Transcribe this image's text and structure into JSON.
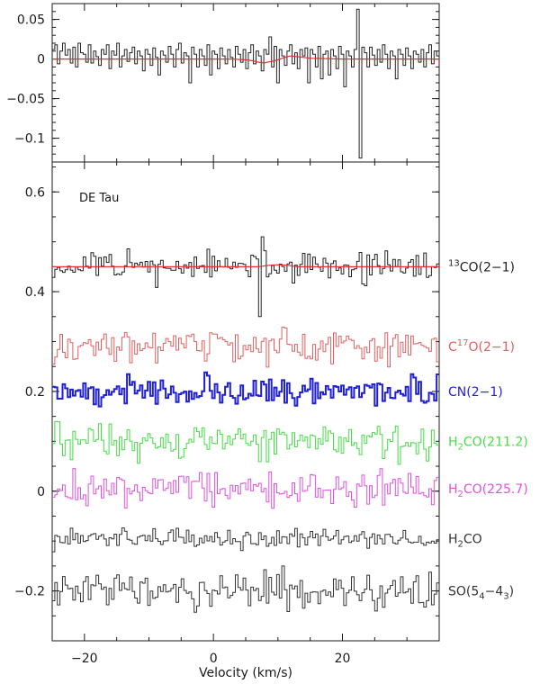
{
  "chart_data": [
    {
      "type": "line",
      "panel": "top",
      "xlim": [
        -25,
        35
      ],
      "ylim": [
        -0.13,
        0.07
      ],
      "y_ticks": [
        0.05,
        0,
        -0.05,
        -0.1
      ],
      "y_tick_labels": [
        "0.05",
        "0",
        "−0.05",
        "−0.1"
      ],
      "grid": false,
      "series": [
        {
          "color": "#222222",
          "style": "histogram",
          "x_start": -25,
          "x_step": 0.4,
          "values": [
            0.012,
            0.018,
            -0.006,
            0.01,
            0.02,
            0.005,
            0.012,
            -0.005,
            0.015,
            -0.01,
            0.02,
            0.008,
            0.006,
            -0.004,
            0.018,
            -0.005,
            0.01,
            0.003,
            -0.008,
            0.012,
            0.006,
            0.018,
            -0.012,
            0.01,
            0.005,
            0.02,
            -0.01,
            0.004,
            0.012,
            -0.003,
            0.008,
            0.015,
            -0.006,
            0.01,
            0.004,
            -0.015,
            0.012,
            0.006,
            -0.008,
            0.014,
            0.002,
            -0.02,
            0.01,
            0.005,
            -0.004,
            0.016,
            0.006,
            -0.01,
            0.012,
            0.02,
            -0.005,
            0.008,
            0.004,
            -0.03,
            0.015,
            0.006,
            -0.01,
            0.012,
            0.004,
            -0.008,
            0.018,
            -0.02,
            0.01,
            0.006,
            -0.012,
            0.014,
            0.004,
            -0.006,
            0.012,
            0.002,
            -0.01,
            0.016,
            0.006,
            -0.004,
            0.012,
            -0.012,
            0.008,
            0.018,
            -0.006,
            0.01,
            0.004,
            -0.015,
            0.012,
            0.006,
            0.028,
            -0.01,
            0.016,
            -0.03,
            0.012,
            0.004,
            -0.008,
            0.01,
            0.018,
            -0.006,
            0.008,
            -0.012,
            0.012,
            0.004,
            0.014,
            -0.03,
            0.012,
            0.006,
            -0.01,
            0.016,
            -0.025,
            0.006,
            0.01,
            -0.02,
            0.012,
            0.004,
            -0.012,
            0.016,
            0.006,
            -0.035,
            0.01,
            0.004,
            -0.01,
            0.012,
            0.063,
            -0.125,
            0.015,
            0.008,
            -0.01,
            0.015,
            0.005,
            -0.008,
            0.012,
            -0.004,
            0.018,
            0.006,
            -0.012,
            0.01,
            0.004,
            -0.025,
            0.012,
            0.006,
            -0.008,
            0.014,
            0.004,
            -0.012,
            0.01,
            0.006,
            -0.004,
            0.012,
            -0.01,
            0.008,
            0.018,
            -0.006,
            0.01,
            0.004,
            -0.015,
            0.012,
            0.006,
            -0.008,
            0.014,
            0.035,
            -0.01,
            0.012,
            0.006,
            -0.004,
            0.016,
            -0.008,
            0.012,
            0.004,
            -0.01,
            0.018,
            0.006,
            -0.006,
            0.012,
            0.004,
            -0.012,
            0.01,
            0.006,
            -0.008,
            0.014,
            -0.02,
            0.012,
            0.004,
            -0.01,
            0.016,
            0.006,
            -0.004,
            0.012,
            -0.012,
            0.008,
            0.038,
            -0.006,
            0.022,
            0.004,
            -0.015,
            0.012,
            0.006,
            -0.008,
            0.014,
            0.002,
            -0.02,
            0.01,
            0.005,
            -0.004,
            0.016,
            0.006,
            -0.01,
            0.012,
            0.02,
            -0.005,
            0.008,
            0.004,
            -0.012,
            0.015,
            0.006,
            -0.01,
            0.012,
            0.004,
            -0.008,
            0.018,
            0.004,
            -0.012,
            0.01,
            0.006,
            -0.004,
            0.012,
            0.002,
            -0.01,
            0.016,
            0.006,
            -0.004,
            0.012,
            -0.012,
            0.008,
            0.018,
            -0.006,
            0.01,
            0.004,
            -0.015,
            0.012,
            0.006,
            -0.008,
            0.014,
            0.004,
            -0.012,
            0.01,
            0.006,
            -0.004,
            0.012,
            0.022,
            0.006,
            -0.008,
            0.012,
            0.004,
            -0.01,
            0.018,
            0.006,
            -0.006,
            0.012,
            0.004,
            -0.012,
            0.01,
            0.006,
            -0.008,
            0.014,
            0.004,
            -0.02,
            0.012,
            0.006,
            -0.004,
            0.016,
            0.006,
            -0.006,
            0.012,
            0.004,
            -0.012,
            0.01,
            0.006,
            -0.008,
            0.014,
            0.004,
            -0.01,
            0.012,
            0.006,
            -0.004,
            0.016,
            0.006,
            -0.012,
            0.012,
            0.004,
            -0.008,
            0.018,
            0.002,
            -0.02,
            0.012,
            0.006,
            -0.008,
            0.014,
            0.004,
            -0.01,
            0.012,
            0.006,
            -0.004,
            0.016,
            0.006,
            -0.012,
            0.012,
            0.004,
            -0.008,
            0.018,
            0.006,
            -0.006,
            0.012,
            0.004,
            -0.012,
            0.01,
            0.006,
            -0.008,
            0.014,
            0.004,
            -0.02,
            0.012,
            0.006,
            -0.004,
            0.016,
            0.006,
            -0.006,
            0.012,
            0.004,
            -0.012,
            0.01,
            0.006,
            -0.008,
            0.014,
            0.004,
            -0.01,
            0.012,
            0.006,
            -0.004,
            0.016,
            0.006,
            -0.012,
            0.012,
            0.004,
            -0.008,
            0.018,
            0.002,
            -0.02,
            0.012,
            0.006,
            -0.008,
            0.014,
            0.004,
            -0.01,
            0.012,
            0.006
          ]
        },
        {
          "color": "#dd3333",
          "style": "line",
          "x": [
            -25,
            -20,
            -15,
            -10,
            -5,
            0,
            3,
            5,
            6,
            7,
            7.8,
            9,
            10,
            11,
            12,
            15,
            20,
            25,
            30,
            35
          ],
          "values": [
            0,
            0,
            0,
            0,
            0,
            0,
            0,
            -0.001,
            -0.002,
            -0.004,
            -0.005,
            -0.003,
            -0.001,
            0.002,
            0.004,
            0.001,
            0,
            0,
            0,
            0
          ]
        }
      ]
    },
    {
      "type": "line",
      "panel": "bottom",
      "xlim": [
        -25,
        35
      ],
      "ylim": [
        -0.3,
        0.66
      ],
      "x_ticks": [
        -20,
        0,
        20
      ],
      "x_tick_labels": [
        "−20",
        "0",
        "20"
      ],
      "y_ticks": [
        0.6,
        0.4,
        0.2,
        0,
        -0.2
      ],
      "y_tick_labels": [
        "0.6",
        "0.4",
        "0.2",
        "0",
        "−0.2"
      ],
      "xlabel": "Velocity (km/s)",
      "ylabel": "",
      "annotation": "DE Tau",
      "grid": false,
      "series": [
        {
          "label_main": "CO(2−1)",
          "label_sup": "13",
          "color": "#222222",
          "offset": 0.45,
          "amplitude": 0.018,
          "seed": 11,
          "spikes": [
            [
              7.0,
              -0.1
            ],
            [
              7.4,
              0.06
            ]
          ]
        },
        {
          "label_pre": "C",
          "label_sup": "17",
          "label_post": "O(2−1)",
          "color": "#e06060",
          "offset": 0.29,
          "amplitude": 0.02,
          "seed": 23
        },
        {
          "label_main": "CN(2−1)",
          "color": "#1f1fd6",
          "offset": 0.2,
          "amplitude": 0.018,
          "seed": 37
        },
        {
          "label_pre": "H",
          "label_sub": "2",
          "label_post": "CO(211.2)",
          "color": "#44dd44",
          "offset": 0.1,
          "amplitude": 0.022,
          "seed": 41
        },
        {
          "label_pre": "H",
          "label_sub": "2",
          "label_post": "CO(225.7)",
          "color": "#e050e0",
          "offset": 0.005,
          "amplitude": 0.022,
          "seed": 53
        },
        {
          "label_pre": "H",
          "label_sub": "2",
          "label_post": "CO",
          "color": "#333333",
          "offset": -0.095,
          "amplitude": 0.012,
          "seed": 61
        },
        {
          "label_pre": "SO(5",
          "label_sub": "4",
          "label_mid": "−4",
          "label_sub2": "3",
          "label_post": ")",
          "color": "#333333",
          "offset": -0.2,
          "amplitude": 0.024,
          "seed": 71,
          "spikes": [
            [
              10.5,
              0.05
            ]
          ]
        }
      ],
      "fit": {
        "color": "#dd3333",
        "offset": 0.45
      }
    }
  ]
}
